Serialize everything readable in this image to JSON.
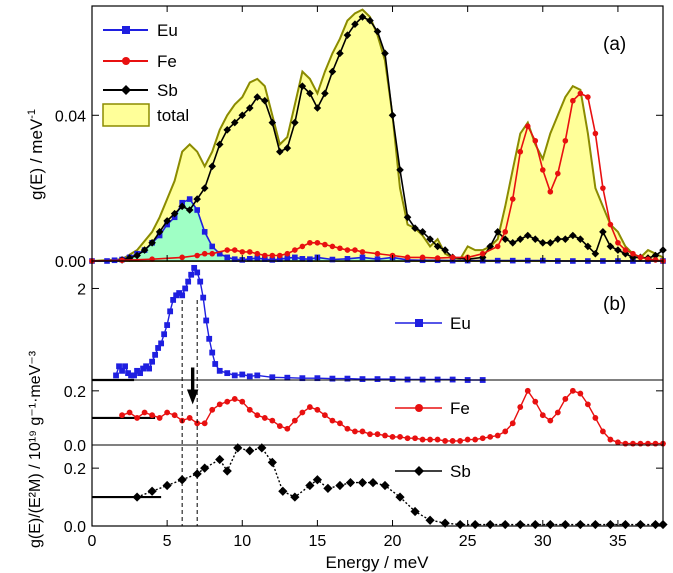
{
  "chart_data": [
    {
      "panel": "(a)",
      "type": "area",
      "ylabel": "g(E)  / meV",
      "ylabel_sup": "-1",
      "xlim": [
        0,
        38
      ],
      "ylim": [
        0,
        0.07
      ],
      "yticks": [
        {
          "v": 0,
          "label": "0.00"
        },
        {
          "v": 0.04,
          "label": "0.04"
        }
      ],
      "legend_position": "top-left",
      "legend": [
        "Eu",
        "Fe",
        "Sb",
        "total"
      ],
      "series": [
        {
          "name": "total",
          "color": "#ffff99",
          "line": "#8b8b00",
          "x": [
            0,
            2,
            3,
            4,
            4.5,
            5,
            5.5,
            6,
            6.5,
            7,
            7.5,
            8,
            8.5,
            9,
            9.5,
            10,
            10.5,
            11,
            11.5,
            12,
            12.5,
            13,
            13.5,
            14,
            14.5,
            15,
            15.5,
            16,
            16.5,
            17,
            17.5,
            18,
            18.5,
            19,
            19.5,
            20,
            20.5,
            21,
            21.5,
            22,
            22.5,
            23,
            23.5,
            24,
            24.5,
            25,
            25.5,
            26,
            26.5,
            27,
            27.5,
            28,
            28.5,
            29,
            29.5,
            30,
            30.5,
            31,
            31.5,
            32,
            32.5,
            33,
            33.5,
            34,
            34.5,
            35,
            35.5,
            36,
            36.5,
            37,
            37.5,
            38
          ],
          "y": [
            0,
            0.0005,
            0.003,
            0.008,
            0.012,
            0.017,
            0.022,
            0.03,
            0.032,
            0.03,
            0.026,
            0.03,
            0.036,
            0.04,
            0.043,
            0.045,
            0.049,
            0.05,
            0.048,
            0.04,
            0.032,
            0.034,
            0.043,
            0.052,
            0.05,
            0.046,
            0.052,
            0.057,
            0.061,
            0.066,
            0.068,
            0.069,
            0.067,
            0.062,
            0.055,
            0.04,
            0.02,
            0.01,
            0.009,
            0.007,
            0.004,
            0.006,
            0.002,
            0.001,
            0.0005,
            0.004,
            0.003,
            0.003,
            0.004,
            0.006,
            0.015,
            0.025,
            0.035,
            0.038,
            0.032,
            0.028,
            0.035,
            0.04,
            0.045,
            0.048,
            0.047,
            0.035,
            0.02,
            0.015,
            0.01,
            0.008,
            0.004,
            0.002,
            0.001,
            0.003,
            0.002,
            0.001
          ]
        },
        {
          "name": "Eu",
          "color": "#1f1fe0",
          "x": [
            0,
            1,
            1.5,
            2,
            2.5,
            3,
            3.5,
            4,
            4.5,
            5,
            5.5,
            6,
            6.5,
            7,
            7.5,
            8,
            8.5,
            9,
            9.5,
            10,
            10.5,
            11,
            11.5,
            12,
            12.5,
            13,
            13.5,
            14,
            14.5,
            15,
            16,
            17,
            18,
            19,
            20,
            21,
            22,
            23,
            24,
            25,
            26,
            27,
            28,
            29,
            30,
            31,
            32,
            33,
            34,
            35,
            36,
            37,
            38
          ],
          "y": [
            0,
            0,
            0.0002,
            0.0004,
            0.001,
            0.002,
            0.003,
            0.005,
            0.007,
            0.01,
            0.012,
            0.016,
            0.017,
            0.014,
            0.008,
            0.004,
            0.002,
            0.001,
            0.0005,
            0.0003,
            0.0006,
            0.0008,
            0.0005,
            0.0003,
            0.0005,
            0.0008,
            0.001,
            0.0006,
            0.0005,
            0.001,
            0.0004,
            0.0006,
            0.001,
            0.0005,
            0.001,
            0.0003,
            0.0002,
            0.0002,
            0.0001,
            0.0001,
            0.0001,
            0.0001,
            0.0001,
            0.0001,
            0.0001,
            0,
            0,
            0,
            0,
            0,
            0,
            0,
            0
          ]
        },
        {
          "name": "Fe",
          "color": "#e81010",
          "x": [
            0,
            2,
            4,
            6,
            7,
            7.5,
            8,
            9,
            9.5,
            10,
            10.5,
            11,
            11.5,
            12,
            12.5,
            13,
            13.5,
            14,
            14.5,
            15,
            15.5,
            16,
            16.5,
            17,
            17.5,
            18,
            19,
            20,
            21,
            22,
            23,
            24,
            25,
            26,
            27,
            27.5,
            28,
            28.5,
            29,
            29.5,
            30,
            30.5,
            31,
            31.5,
            32,
            32.5,
            33,
            33.5,
            34,
            34.5,
            35,
            35.5,
            36,
            36.5,
            37,
            37.5,
            38
          ],
          "y": [
            0,
            0.0002,
            0.0005,
            0.001,
            0.0015,
            0.002,
            0.002,
            0.003,
            0.003,
            0.0025,
            0.0025,
            0.002,
            0.0015,
            0.0015,
            0.0015,
            0.002,
            0.003,
            0.004,
            0.005,
            0.005,
            0.0045,
            0.004,
            0.0035,
            0.003,
            0.003,
            0.0025,
            0.002,
            0.0015,
            0.001,
            0.001,
            0.0008,
            0.001,
            0.001,
            0.002,
            0.004,
            0.008,
            0.017,
            0.03,
            0.037,
            0.033,
            0.025,
            0.019,
            0.024,
            0.033,
            0.044,
            0.046,
            0.045,
            0.035,
            0.02,
            0.01,
            0.005,
            0.003,
            0.002,
            0.001,
            0.0005,
            0.0003,
            0
          ]
        },
        {
          "name": "Sb",
          "color": "#000000",
          "x": [
            2,
            2.5,
            3,
            3.5,
            4,
            4.5,
            5,
            5.5,
            6,
            6.5,
            7,
            7.5,
            8,
            8.5,
            9,
            9.5,
            10,
            10.5,
            11,
            11.5,
            12,
            12.5,
            13,
            13.5,
            14,
            14.5,
            15,
            15.5,
            16,
            16.5,
            17,
            17.5,
            18,
            18.5,
            19,
            19.5,
            20,
            20.5,
            21,
            21.5,
            22,
            22.5,
            23,
            23.5,
            24,
            25,
            26,
            26.5,
            27,
            27.5,
            28,
            28.5,
            29,
            29.5,
            30,
            30.5,
            31,
            31.5,
            32,
            32.5,
            33,
            33.5,
            34,
            34.5,
            35,
            35.5,
            36,
            36.5,
            37,
            37.5,
            38
          ],
          "y": [
            0.0003,
            0.0008,
            0.0015,
            0.003,
            0.005,
            0.008,
            0.011,
            0.013,
            0.015,
            0.014,
            0.017,
            0.02,
            0.026,
            0.032,
            0.036,
            0.038,
            0.04,
            0.042,
            0.045,
            0.044,
            0.038,
            0.03,
            0.031,
            0.038,
            0.048,
            0.046,
            0.042,
            0.046,
            0.052,
            0.057,
            0.062,
            0.065,
            0.067,
            0.066,
            0.063,
            0.057,
            0.04,
            0.025,
            0.012,
            0.009,
            0.008,
            0.006,
            0.004,
            0.003,
            0.001,
            0.0005,
            0.001,
            0.004,
            0.008,
            0.006,
            0.005,
            0.006,
            0.007,
            0.006,
            0.005,
            0.005,
            0.006,
            0.006,
            0.007,
            0.006,
            0.004,
            0.002,
            0.008,
            0.004,
            0.003,
            0.002,
            0.001,
            0.001,
            0.0008,
            0.0015,
            0.003
          ]
        }
      ]
    },
    {
      "panel": "(b)",
      "type": "line",
      "ylabel": "g(E)/(E²M) / 10¹⁹ g⁻¹·meV⁻³",
      "xlabel": "Energy / meV",
      "xlim": [
        0,
        38
      ],
      "xticks": [
        0,
        5,
        10,
        15,
        20,
        25,
        30,
        35
      ],
      "dashed_lines_x": [
        6.0,
        7.0
      ],
      "arrow_x": 6.7,
      "subpanels": [
        {
          "name": "Eu",
          "color": "#1f1fe0",
          "marker": "square",
          "ylim": [
            0,
            2.6
          ],
          "yticks": [
            {
              "v": 0,
              "label": ""
            },
            {
              "v": 2,
              "label": "2"
            }
          ],
          "baseline": 0.0,
          "baseline_xmax": 2.8,
          "x": [
            1.6,
            1.8,
            2.0,
            2.2,
            2.4,
            2.6,
            2.8,
            3.0,
            3.2,
            3.4,
            3.6,
            3.8,
            4.0,
            4.2,
            4.4,
            4.6,
            4.8,
            5.0,
            5.2,
            5.4,
            5.6,
            5.8,
            6.0,
            6.2,
            6.4,
            6.6,
            6.8,
            7.0,
            7.2,
            7.4,
            7.6,
            7.8,
            8.0,
            8.2,
            8.5,
            9,
            9.5,
            10,
            10.5,
            11,
            12,
            13,
            14,
            15,
            16,
            17,
            18,
            19,
            20,
            21,
            22,
            23,
            24,
            25,
            26
          ],
          "y": [
            0.1,
            0.3,
            0.2,
            0.3,
            0.15,
            0.1,
            0.1,
            0.2,
            0.15,
            0.25,
            0.3,
            0.25,
            0.4,
            0.55,
            0.7,
            0.8,
            1.0,
            1.2,
            1.5,
            1.75,
            1.85,
            1.9,
            1.85,
            2.0,
            2.15,
            2.3,
            2.45,
            2.35,
            2.15,
            1.8,
            1.3,
            0.9,
            0.6,
            0.35,
            0.2,
            0.15,
            0.1,
            0.12,
            0.08,
            0.1,
            0.06,
            0.05,
            0.04,
            0.04,
            0.03,
            0.03,
            0.02,
            0.02,
            0.02,
            0.01,
            0.01,
            0.01,
            0.01,
            0.0,
            0.0
          ]
        },
        {
          "name": "Fe",
          "color": "#e81010",
          "marker": "circle",
          "ylim": [
            0,
            0.24
          ],
          "yticks": [
            {
              "v": 0,
              "label": "0.0"
            },
            {
              "v": 0.2,
              "label": "0.2"
            }
          ],
          "baseline": 0.1,
          "baseline_xmax": 4.2,
          "x": [
            2.0,
            2.5,
            3.0,
            3.5,
            4.0,
            4.5,
            5.0,
            5.5,
            6.0,
            6.5,
            7.0,
            7.5,
            8.0,
            8.5,
            9.0,
            9.5,
            10.0,
            10.5,
            11.0,
            11.5,
            12.0,
            12.5,
            13.0,
            13.5,
            14.0,
            14.5,
            15.0,
            15.5,
            16.0,
            16.5,
            17.0,
            17.5,
            18.0,
            18.5,
            19.0,
            19.5,
            20.0,
            20.5,
            21.0,
            21.5,
            22.0,
            22.5,
            23.0,
            23.5,
            24.0,
            24.5,
            25.0,
            25.5,
            26.0,
            26.5,
            27.0,
            27.5,
            28.0,
            28.5,
            29.0,
            29.5,
            30.0,
            30.5,
            31.0,
            31.5,
            32.0,
            32.5,
            33.0,
            33.5,
            34.0,
            34.5,
            35.0,
            35.5,
            36.0,
            36.5,
            37.0,
            37.5,
            38.0
          ],
          "y": [
            0.11,
            0.12,
            0.1,
            0.12,
            0.11,
            0.1,
            0.12,
            0.11,
            0.09,
            0.1,
            0.08,
            0.08,
            0.13,
            0.15,
            0.16,
            0.17,
            0.16,
            0.13,
            0.11,
            0.1,
            0.09,
            0.07,
            0.06,
            0.09,
            0.12,
            0.14,
            0.13,
            0.11,
            0.09,
            0.08,
            0.06,
            0.05,
            0.05,
            0.04,
            0.04,
            0.035,
            0.03,
            0.03,
            0.025,
            0.025,
            0.02,
            0.02,
            0.02,
            0.015,
            0.015,
            0.015,
            0.02,
            0.02,
            0.025,
            0.03,
            0.035,
            0.05,
            0.08,
            0.14,
            0.2,
            0.16,
            0.11,
            0.09,
            0.12,
            0.17,
            0.2,
            0.19,
            0.15,
            0.1,
            0.05,
            0.02,
            0.01,
            0.005,
            0.005,
            0.005,
            0.005,
            0.005,
            0.005
          ]
        },
        {
          "name": "Sb",
          "color": "#000000",
          "marker": "diamond",
          "ylim": [
            0,
            0.28
          ],
          "yticks": [
            {
              "v": 0,
              "label": "0.0"
            },
            {
              "v": 0.2,
              "label": "0.2"
            }
          ],
          "baseline": 0.1,
          "baseline_xmax": 4.6,
          "x": [
            3.0,
            4.0,
            5.0,
            6.0,
            7.0,
            7.5,
            8.5,
            9.0,
            9.7,
            10.5,
            11.3,
            12.0,
            12.7,
            13.5,
            14.5,
            15.0,
            15.7,
            16.5,
            17.2,
            18.0,
            18.7,
            19.5,
            20.5,
            21.5,
            22.5,
            23.5,
            24.5,
            25.5,
            26.5,
            27.5,
            28.5,
            29.5,
            30.5,
            31.5,
            32.5,
            33.5,
            34.5,
            35.5,
            36.5,
            37.5,
            38.0
          ],
          "y": [
            0.1,
            0.12,
            0.14,
            0.16,
            0.18,
            0.2,
            0.23,
            0.19,
            0.27,
            0.26,
            0.27,
            0.22,
            0.12,
            0.1,
            0.14,
            0.16,
            0.13,
            0.14,
            0.15,
            0.15,
            0.15,
            0.14,
            0.1,
            0.05,
            0.02,
            0.01,
            0.005,
            0.005,
            0.005,
            0.005,
            0.005,
            0.005,
            0.005,
            0.005,
            0.005,
            0.005,
            0.005,
            0.005,
            0.005,
            0.005,
            0.005
          ]
        }
      ]
    }
  ]
}
